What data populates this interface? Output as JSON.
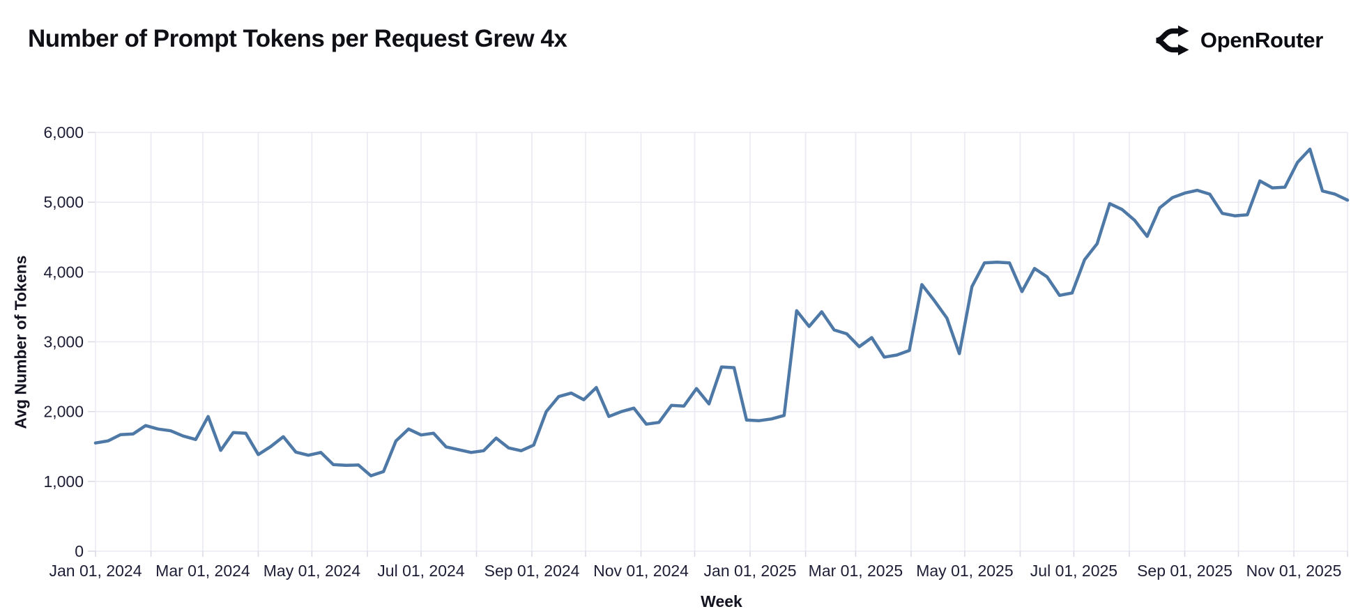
{
  "header": {
    "title": "Number of Prompt Tokens per Request Grew 4x",
    "brand": "OpenRouter"
  },
  "chart_data": {
    "type": "line",
    "title": "Number of Prompt Tokens per Request Grew 4x",
    "xlabel": "Week",
    "ylabel": "Avg Number of Tokens",
    "legend": "none",
    "grid": "monthly vertical gridlines, horizontal gridlines every 1000",
    "ylim": [
      0,
      6000
    ],
    "x_start": "2024-01-01",
    "x_step_days": 7,
    "values": [
      1550,
      1580,
      1670,
      1680,
      1800,
      1750,
      1725,
      1650,
      1600,
      1930,
      1445,
      1700,
      1690,
      1385,
      1500,
      1640,
      1420,
      1375,
      1415,
      1240,
      1230,
      1235,
      1080,
      1140,
      1580,
      1750,
      1665,
      1690,
      1495,
      1455,
      1415,
      1440,
      1620,
      1480,
      1440,
      1520,
      2000,
      2215,
      2265,
      2170,
      2345,
      1930,
      2000,
      2050,
      1820,
      1845,
      2090,
      2080,
      2330,
      2110,
      2640,
      2630,
      1880,
      1870,
      1895,
      1945,
      3445,
      3220,
      3430,
      3170,
      3115,
      2930,
      3060,
      2780,
      2810,
      2875,
      3820,
      3590,
      3340,
      2830,
      3790,
      4130,
      4140,
      4130,
      3720,
      4050,
      3930,
      3665,
      3700,
      4175,
      4405,
      4980,
      4895,
      4740,
      4510,
      4920,
      5065,
      5130,
      5170,
      5115,
      4840,
      4805,
      4820,
      5305,
      5205,
      5215,
      5570,
      5760,
      5160,
      5115,
      5030
    ],
    "yticks": [
      {
        "value": 0,
        "label": "0"
      },
      {
        "value": 1000,
        "label": "1,000"
      },
      {
        "value": 2000,
        "label": "2,000"
      },
      {
        "value": 3000,
        "label": "3,000"
      },
      {
        "value": 4000,
        "label": "4,000"
      },
      {
        "value": 5000,
        "label": "5,000"
      },
      {
        "value": 6000,
        "label": "6,000"
      }
    ],
    "xticks": [
      {
        "date": "2024-01-01",
        "label": "Jan 01, 2024"
      },
      {
        "date": "2024-03-01",
        "label": "Mar 01, 2024"
      },
      {
        "date": "2024-05-01",
        "label": "May 01, 2024"
      },
      {
        "date": "2024-07-01",
        "label": "Jul 01, 2024"
      },
      {
        "date": "2024-09-01",
        "label": "Sep 01, 2024"
      },
      {
        "date": "2024-11-01",
        "label": "Nov 01, 2024"
      },
      {
        "date": "2025-01-01",
        "label": "Jan 01, 2025"
      },
      {
        "date": "2025-03-01",
        "label": "Mar 01, 2025"
      },
      {
        "date": "2025-05-01",
        "label": "May 01, 2025"
      },
      {
        "date": "2025-07-01",
        "label": "Jul 01, 2025"
      },
      {
        "date": "2025-09-01",
        "label": "Sep 01, 2025"
      },
      {
        "date": "2025-11-01",
        "label": "Nov 01, 2025"
      }
    ],
    "colors": {
      "line": "#4e79a7",
      "grid": "#e9e9f2",
      "tick": "#d9d9e4",
      "tick_text": "#1d1d35",
      "title": "#0f0f16",
      "brand": "#0b0c11"
    }
  }
}
